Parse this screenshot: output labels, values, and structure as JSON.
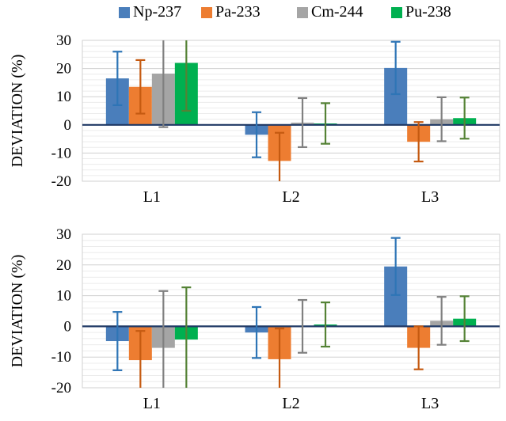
{
  "legend": {
    "items": [
      {
        "name": "Np-237",
        "color": "#4a7ebb"
      },
      {
        "name": "Pa-233",
        "color": "#ed7d31"
      },
      {
        "name": "Cm-244",
        "color": "#a5a5a5"
      },
      {
        "name": "Pu-238",
        "color": "#00b050"
      }
    ]
  },
  "colors": {
    "Np-237": "#4a7ebb",
    "Pa-233": "#ed7d31",
    "Cm-244": "#a5a5a5",
    "Pu-238": "#00b050",
    "err_Np-237": "#2e75b6",
    "err_Pa-233": "#c55a11",
    "err_Cm-244": "#808080",
    "err_Pu-238": "#548235"
  },
  "chart_data": [
    {
      "type": "bar",
      "ylabel": "DEVIATION (%)",
      "ylim": [
        -20,
        30
      ],
      "yticks": [
        -20,
        -10,
        0,
        10,
        20,
        30
      ],
      "grid": true,
      "legend": "top",
      "categories": [
        "L1",
        "L2",
        "L3"
      ],
      "series": [
        {
          "name": "Np-237",
          "values": [
            16.5,
            -3.5,
            20.2
          ],
          "errors": [
            9.5,
            8.0,
            9.3
          ]
        },
        {
          "name": "Pa-233",
          "values": [
            13.5,
            -12.8,
            -6.0
          ],
          "errors": [
            9.5,
            10.0,
            7.0
          ]
        },
        {
          "name": "Cm-244",
          "values": [
            18.2,
            0.8,
            2.0
          ],
          "errors": [
            19.0,
            8.7,
            7.8
          ]
        },
        {
          "name": "Pu-238",
          "values": [
            22.0,
            0.5,
            2.4
          ],
          "errors": [
            17.0,
            7.2,
            7.3
          ]
        }
      ]
    },
    {
      "type": "bar",
      "ylabel": "DEVIATION (%)",
      "ylim": [
        -20,
        30
      ],
      "yticks": [
        -20,
        -10,
        0,
        10,
        20,
        30
      ],
      "grid": true,
      "categories": [
        "L1",
        "L2",
        "L3"
      ],
      "series": [
        {
          "name": "Np-237",
          "values": [
            -4.8,
            -2.0,
            19.5
          ],
          "errors": [
            9.5,
            8.3,
            9.3
          ]
        },
        {
          "name": "Pa-233",
          "values": [
            -11.0,
            -10.7,
            -7.0
          ],
          "errors": [
            9.5,
            10.0,
            7.0
          ]
        },
        {
          "name": "Cm-244",
          "values": [
            -7.0,
            0.0,
            1.8
          ],
          "errors": [
            18.5,
            8.6,
            7.8
          ]
        },
        {
          "name": "Pu-238",
          "values": [
            -4.3,
            0.6,
            2.5
          ],
          "errors": [
            17.0,
            7.2,
            7.3
          ]
        }
      ]
    }
  ]
}
